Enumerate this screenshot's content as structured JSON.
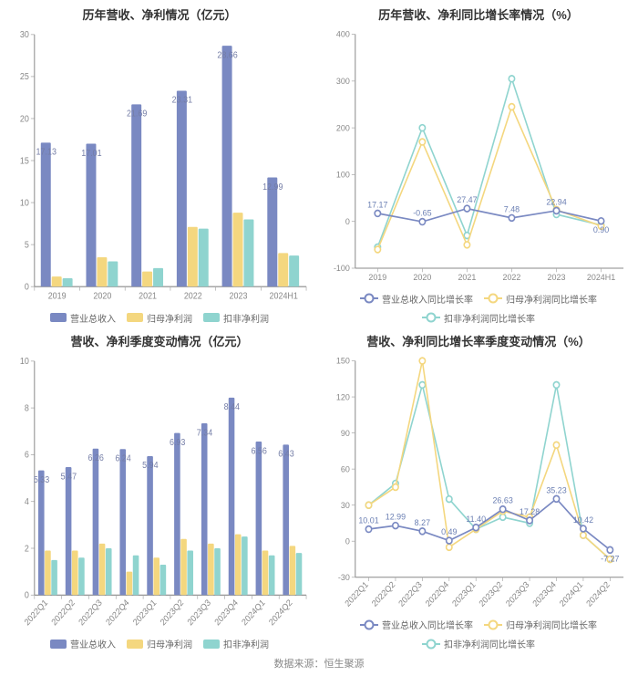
{
  "source_label": "数据来源：恒生聚源",
  "colors": {
    "revenue": "#7a89c2",
    "net_profit": "#f4d77f",
    "non_recurring": "#8fd4cf",
    "grid": "#dddddd",
    "axis": "#888888",
    "text": "#888888",
    "label_blue": "#6b7fb3"
  },
  "charts": {
    "annual_bar": {
      "title": "历年营收、净利情况（亿元）",
      "type": "bar",
      "categories": [
        "2019",
        "2020",
        "2021",
        "2022",
        "2023",
        "2024H1"
      ],
      "series": [
        {
          "key": "revenue",
          "name": "营业总收入",
          "values": [
            17.13,
            17.01,
            21.69,
            23.31,
            28.66,
            12.99
          ]
        },
        {
          "key": "net_profit",
          "name": "归母净利润",
          "values": [
            1.2,
            3.5,
            1.8,
            7.1,
            8.8,
            4.0
          ]
        },
        {
          "key": "non_recurring",
          "name": "扣非净利润",
          "values": [
            1.0,
            3.0,
            2.2,
            6.9,
            8.0,
            3.7
          ]
        }
      ],
      "ylim": [
        0,
        30
      ],
      "ytick_step": 5,
      "bar_labels": [
        17.13,
        17.01,
        21.69,
        23.31,
        28.66,
        12.99
      ]
    },
    "annual_line": {
      "title": "历年营收、净利同比增长率情况（%）",
      "type": "line",
      "categories": [
        "2019",
        "2020",
        "2021",
        "2022",
        "2023",
        "2024H1"
      ],
      "series": [
        {
          "key": "revenue",
          "name": "营业总收入同比增长率",
          "values": [
            17.17,
            -0.65,
            27.47,
            7.48,
            22.94,
            0.9
          ]
        },
        {
          "key": "net_profit",
          "name": "归母净利润同比增长率",
          "values": [
            -60,
            170,
            -50,
            245,
            25,
            -10
          ]
        },
        {
          "key": "non_recurring",
          "name": "扣非净利润同比增长率",
          "values": [
            -55,
            200,
            -30,
            305,
            15,
            -8
          ]
        }
      ],
      "ylim": [
        -100,
        400
      ],
      "ytick_step": 100,
      "labels_on_series": "revenue"
    },
    "quarterly_bar": {
      "title": "营收、净利季度变动情况（亿元）",
      "type": "bar",
      "categories": [
        "2022Q1",
        "2022Q2",
        "2022Q3",
        "2022Q4",
        "2023Q1",
        "2023Q2",
        "2023Q3",
        "2023Q4",
        "2024Q1",
        "2024Q2"
      ],
      "series": [
        {
          "key": "revenue",
          "name": "营业总收入",
          "values": [
            5.33,
            5.47,
            6.26,
            6.24,
            5.94,
            6.93,
            7.34,
            8.44,
            6.56,
            6.43
          ]
        },
        {
          "key": "net_profit",
          "name": "归母净利润",
          "values": [
            1.9,
            1.9,
            2.2,
            1.0,
            1.6,
            2.4,
            2.2,
            2.6,
            1.9,
            2.1
          ]
        },
        {
          "key": "non_recurring",
          "name": "扣非净利润",
          "values": [
            1.5,
            1.6,
            2.0,
            1.7,
            1.3,
            1.9,
            2.0,
            2.5,
            1.7,
            1.8
          ]
        }
      ],
      "ylim": [
        0,
        10
      ],
      "ytick_step": 2,
      "bar_labels": [
        5.33,
        5.47,
        6.26,
        6.24,
        5.94,
        6.93,
        7.34,
        8.44,
        6.56,
        6.43
      ]
    },
    "quarterly_line": {
      "title": "营收、净利同比增长率季度变动情况（%）",
      "type": "line",
      "categories": [
        "2022Q1",
        "2022Q2",
        "2022Q3",
        "2022Q4",
        "2023Q1",
        "2023Q2",
        "2023Q3",
        "2023Q4",
        "2024Q1",
        "2024Q2"
      ],
      "series": [
        {
          "key": "revenue",
          "name": "营业总收入同比增长率",
          "values": [
            10.01,
            12.99,
            8.27,
            0.49,
            11.4,
            26.63,
            17.28,
            35.23,
            10.42,
            -7.27
          ]
        },
        {
          "key": "net_profit",
          "name": "归母净利润同比增长率",
          "values": [
            30,
            45,
            150,
            -5,
            10,
            25,
            20,
            80,
            5,
            -15
          ]
        },
        {
          "key": "non_recurring",
          "name": "扣非净利润同比增长率",
          "values": [
            30,
            48,
            130,
            35,
            10,
            20,
            15,
            130,
            5,
            -15
          ]
        }
      ],
      "ylim": [
        -30,
        150
      ],
      "ytick_step": 30,
      "labels_on_series": "revenue"
    }
  },
  "legends": {
    "bar": [
      "营业总收入",
      "归母净利润",
      "扣非净利润"
    ],
    "line": [
      "营业总收入同比增长率",
      "归母净利润同比增长率",
      "扣非净利润同比增长率"
    ]
  }
}
